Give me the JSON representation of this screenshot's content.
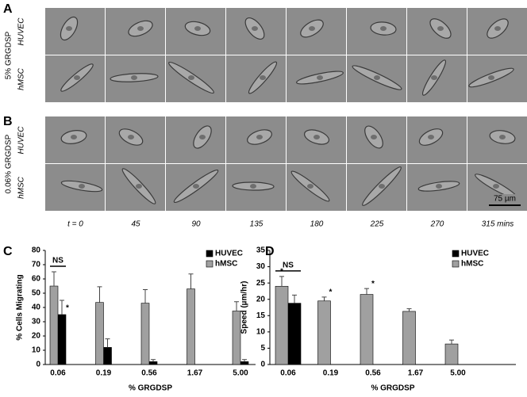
{
  "panel_labels": [
    "A",
    "B",
    "C",
    "D"
  ],
  "microscopy": [
    {
      "label": "5% GRGDSP",
      "rows": [
        "HUVEC",
        "hMSC"
      ]
    },
    {
      "label": "0.06% GRGDSP",
      "rows": [
        "HUVEC",
        "hMSC"
      ]
    }
  ],
  "times": [
    "t = 0",
    "45",
    "90",
    "135",
    "180",
    "225",
    "270",
    "315 mins"
  ],
  "scale_bar": "75 µm",
  "chart_data": [
    {
      "type": "bar",
      "ylabel": "% Cells Migrating",
      "xlabel": "% GRGDSP",
      "categories": [
        "0.06",
        "0.19",
        "0.56",
        "1.67",
        "5.00"
      ],
      "series": [
        {
          "name": "HUVEC",
          "color": "#000000",
          "values": [
            35,
            12,
            2,
            null,
            2
          ],
          "errors": [
            10,
            6,
            1.5,
            null,
            1.5
          ]
        },
        {
          "name": "hMSC",
          "color": "#a0a0a0",
          "values": [
            55,
            43.5,
            43,
            53,
            37.5
          ],
          "errors": [
            10,
            11,
            9.5,
            10.5,
            6.5
          ]
        }
      ],
      "ylim": [
        0,
        80
      ],
      "yticks": [
        0,
        10,
        20,
        30,
        40,
        50,
        60,
        70,
        80
      ],
      "legend": "upper right",
      "annotations": [
        "NS",
        "*"
      ]
    },
    {
      "type": "bar",
      "ylabel": "Speed (µm/hr)",
      "xlabel": "% GRGDSP",
      "categories": [
        "0.06",
        "0.19",
        "0.56",
        "1.67",
        "5.00"
      ],
      "series": [
        {
          "name": "HUVEC",
          "color": "#000000",
          "values": [
            18.8,
            null,
            null,
            null,
            null
          ],
          "errors": [
            2.5,
            null,
            null,
            null,
            null
          ]
        },
        {
          "name": "hMSC",
          "color": "#a0a0a0",
          "values": [
            24,
            19.5,
            21.5,
            16.3,
            6.3
          ],
          "errors": [
            3,
            1.2,
            1.8,
            0.8,
            1.2
          ]
        }
      ],
      "ylim": [
        0,
        35
      ],
      "yticks": [
        0,
        5,
        10,
        15,
        20,
        25,
        30,
        35
      ],
      "legend": "upper right",
      "annotations": [
        "NS",
        "*",
        "*",
        "*"
      ]
    }
  ]
}
